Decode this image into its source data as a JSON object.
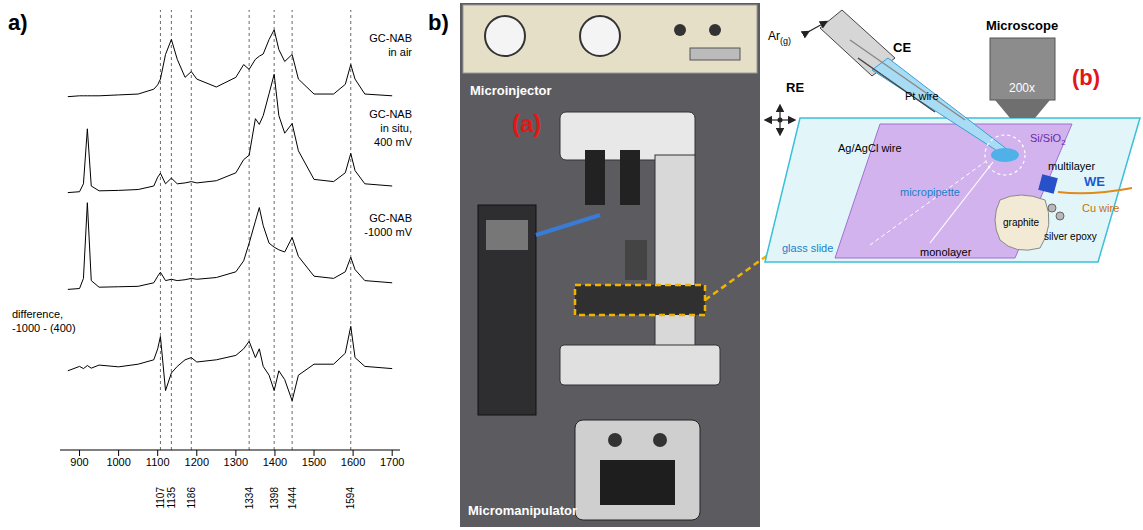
{
  "chart_data": {
    "type": "line",
    "panel_label": "a)",
    "x": [
      870,
      900,
      910,
      920,
      930,
      950,
      1000,
      1050,
      1090,
      1100,
      1107,
      1120,
      1135,
      1150,
      1170,
      1186,
      1200,
      1250,
      1300,
      1320,
      1334,
      1350,
      1360,
      1370,
      1385,
      1398,
      1410,
      1425,
      1444,
      1460,
      1500,
      1550,
      1580,
      1594,
      1605,
      1630,
      1700
    ],
    "series": [
      {
        "name": "GC-NAB\nin air",
        "color": "#000000",
        "values": [
          80.3,
          80.5,
          80.5,
          80.5,
          80.5,
          80.5,
          80.7,
          80.9,
          82.0,
          83.0,
          84.3,
          89.9,
          93.3,
          88.8,
          84.7,
          86.0,
          84.3,
          82.5,
          84.7,
          87.6,
          86.5,
          88.8,
          89.5,
          90.0,
          93.3,
          95.5,
          91.0,
          88.3,
          89.9,
          84.3,
          80.9,
          80.9,
          83.1,
          87.6,
          84.3,
          80.9,
          80.5
        ]
      },
      {
        "name": "GC-NAB\nin situ,\n400 mV",
        "color": "#000000",
        "values": [
          58.5,
          58.7,
          60.5,
          73.0,
          60.0,
          58.9,
          59.0,
          59.2,
          60.0,
          62.0,
          62.9,
          60.5,
          61.8,
          60.5,
          60.7,
          61.0,
          60.7,
          61.2,
          63.0,
          66.0,
          67.0,
          75.3,
          74.0,
          76.0,
          81.0,
          85.4,
          76.0,
          72.0,
          74.2,
          68.0,
          61.5,
          61.0,
          63.0,
          67.4,
          63.5,
          60.5,
          60.0
        ]
      },
      {
        "name": "GC-NAB\n-1000 mV",
        "color": "#000000",
        "values": [
          36.5,
          36.7,
          39.0,
          56.2,
          38.5,
          37.0,
          37.1,
          37.2,
          38.0,
          39.5,
          40.4,
          38.5,
          38.8,
          38.5,
          38.7,
          39.0,
          38.8,
          39.2,
          40.5,
          43.0,
          47.0,
          52.0,
          55.1,
          51.0,
          47.0,
          46.1,
          45.5,
          45.0,
          48.3,
          44.0,
          39.5,
          39.0,
          40.5,
          43.8,
          41.0,
          38.5,
          38.0
        ]
      },
      {
        "name": "difference,\n-1000 - (400)",
        "color": "#000000",
        "values": [
          18.0,
          19.0,
          18.5,
          19.2,
          18.6,
          19.3,
          18.9,
          19.5,
          20.5,
          23.0,
          25.8,
          13.5,
          17.5,
          19.0,
          20.5,
          21.0,
          20.0,
          20.5,
          21.5,
          23.0,
          24.7,
          21.0,
          23.0,
          19.0,
          17.0,
          13.5,
          18.0,
          16.0,
          11.2,
          17.0,
          19.5,
          19.5,
          22.0,
          28.1,
          21.0,
          19.0,
          18.5
        ]
      }
    ],
    "xlim": [
      850,
      1720
    ],
    "xticks": [
      900,
      1000,
      1100,
      1200,
      1300,
      1400,
      1500,
      1600,
      1700
    ],
    "ylim": [
      0,
      100
    ],
    "tick_labels": "x",
    "grid": false,
    "reference_lines": [
      1107,
      1135,
      1186,
      1334,
      1398,
      1444,
      1594
    ]
  },
  "panel_label": "b)",
  "photo": {
    "label": "(a)",
    "parts": [
      "Microinjector",
      "Micromanipulator"
    ]
  },
  "schematic": {
    "label": "(b)",
    "gas": {
      "text": "Ar",
      "sub": "(g)"
    },
    "electrodes": {
      "counter": "CE",
      "reference": "RE",
      "working": "WE"
    },
    "wires": {
      "counter": "Pt wire",
      "reference": "Ag/AgCl wire",
      "working": "Cu wire"
    },
    "microscope": "Microscope",
    "magnification": "200x",
    "pipette": "micropipette",
    "substrate": {
      "text": "Si/SiO",
      "sub": "2"
    },
    "flakes": {
      "thick": "multilayer",
      "thin": "monolayer"
    },
    "contact": "graphite",
    "glue": "silver epoxy",
    "slide": "glass slide"
  }
}
